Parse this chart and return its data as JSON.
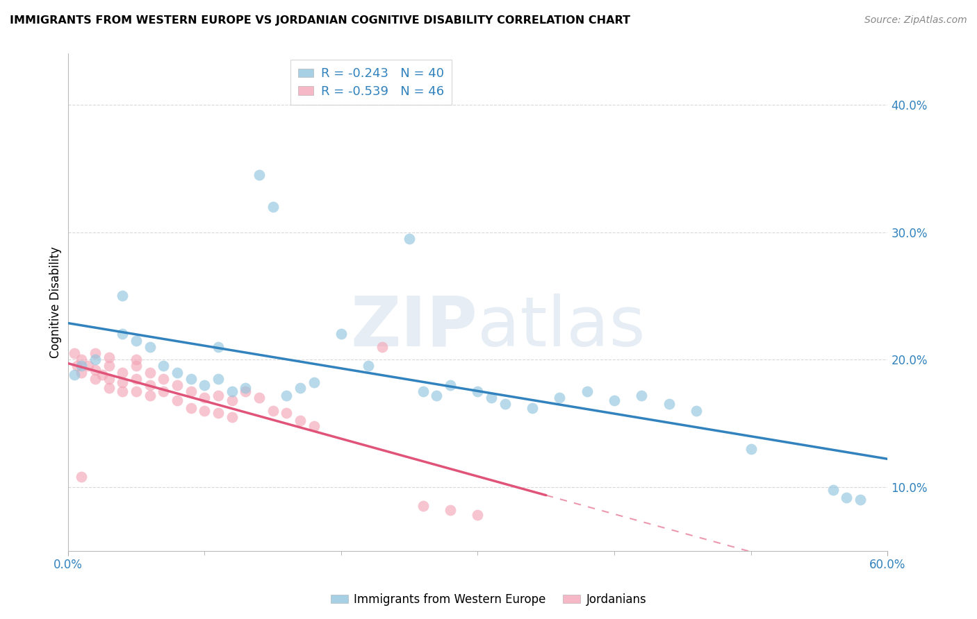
{
  "title": "IMMIGRANTS FROM WESTERN EUROPE VS JORDANIAN COGNITIVE DISABILITY CORRELATION CHART",
  "source": "Source: ZipAtlas.com",
  "ylabel": "Cognitive Disability",
  "y_ticks": [
    0.1,
    0.2,
    0.3,
    0.4
  ],
  "y_tick_labels": [
    "10.0%",
    "20.0%",
    "30.0%",
    "40.0%"
  ],
  "xlim": [
    0.0,
    0.6
  ],
  "ylim": [
    0.05,
    0.44
  ],
  "legend_blue_r": "-0.243",
  "legend_blue_n": "40",
  "legend_pink_r": "-0.539",
  "legend_pink_n": "46",
  "blue_color": "#92c5de",
  "pink_color": "#f4a6b8",
  "blue_line_color": "#3182bd",
  "pink_line_color": "#e0547a",
  "blue_scatter": [
    [
      0.005,
      0.188
    ],
    [
      0.01,
      0.195
    ],
    [
      0.02,
      0.2
    ],
    [
      0.04,
      0.25
    ],
    [
      0.04,
      0.22
    ],
    [
      0.05,
      0.215
    ],
    [
      0.06,
      0.21
    ],
    [
      0.07,
      0.195
    ],
    [
      0.08,
      0.19
    ],
    [
      0.09,
      0.185
    ],
    [
      0.1,
      0.18
    ],
    [
      0.11,
      0.21
    ],
    [
      0.11,
      0.185
    ],
    [
      0.12,
      0.175
    ],
    [
      0.13,
      0.178
    ],
    [
      0.14,
      0.345
    ],
    [
      0.15,
      0.32
    ],
    [
      0.16,
      0.172
    ],
    [
      0.17,
      0.178
    ],
    [
      0.18,
      0.182
    ],
    [
      0.2,
      0.22
    ],
    [
      0.22,
      0.195
    ],
    [
      0.25,
      0.295
    ],
    [
      0.26,
      0.175
    ],
    [
      0.27,
      0.172
    ],
    [
      0.28,
      0.18
    ],
    [
      0.3,
      0.175
    ],
    [
      0.31,
      0.17
    ],
    [
      0.32,
      0.165
    ],
    [
      0.34,
      0.162
    ],
    [
      0.36,
      0.17
    ],
    [
      0.38,
      0.175
    ],
    [
      0.4,
      0.168
    ],
    [
      0.42,
      0.172
    ],
    [
      0.44,
      0.165
    ],
    [
      0.46,
      0.16
    ],
    [
      0.5,
      0.13
    ],
    [
      0.56,
      0.098
    ],
    [
      0.57,
      0.092
    ],
    [
      0.58,
      0.09
    ]
  ],
  "pink_scatter": [
    [
      0.005,
      0.205
    ],
    [
      0.007,
      0.195
    ],
    [
      0.01,
      0.2
    ],
    [
      0.01,
      0.19
    ],
    [
      0.015,
      0.195
    ],
    [
      0.02,
      0.205
    ],
    [
      0.02,
      0.192
    ],
    [
      0.02,
      0.185
    ],
    [
      0.025,
      0.188
    ],
    [
      0.03,
      0.195
    ],
    [
      0.03,
      0.185
    ],
    [
      0.03,
      0.178
    ],
    [
      0.04,
      0.19
    ],
    [
      0.04,
      0.182
    ],
    [
      0.04,
      0.175
    ],
    [
      0.05,
      0.195
    ],
    [
      0.05,
      0.185
    ],
    [
      0.05,
      0.175
    ],
    [
      0.06,
      0.19
    ],
    [
      0.06,
      0.18
    ],
    [
      0.06,
      0.172
    ],
    [
      0.07,
      0.185
    ],
    [
      0.07,
      0.175
    ],
    [
      0.08,
      0.18
    ],
    [
      0.08,
      0.168
    ],
    [
      0.09,
      0.175
    ],
    [
      0.09,
      0.162
    ],
    [
      0.1,
      0.17
    ],
    [
      0.1,
      0.16
    ],
    [
      0.11,
      0.172
    ],
    [
      0.11,
      0.158
    ],
    [
      0.12,
      0.168
    ],
    [
      0.12,
      0.155
    ],
    [
      0.13,
      0.175
    ],
    [
      0.14,
      0.17
    ],
    [
      0.15,
      0.16
    ],
    [
      0.16,
      0.158
    ],
    [
      0.17,
      0.152
    ],
    [
      0.18,
      0.148
    ],
    [
      0.23,
      0.21
    ],
    [
      0.01,
      0.108
    ],
    [
      0.28,
      0.082
    ],
    [
      0.3,
      0.078
    ],
    [
      0.26,
      0.085
    ],
    [
      0.05,
      0.2
    ],
    [
      0.03,
      0.202
    ]
  ],
  "background_color": "#ffffff",
  "grid_color": "#d9d9d9",
  "watermark_color": "#c8d8e8",
  "watermark_alpha": 0.45
}
